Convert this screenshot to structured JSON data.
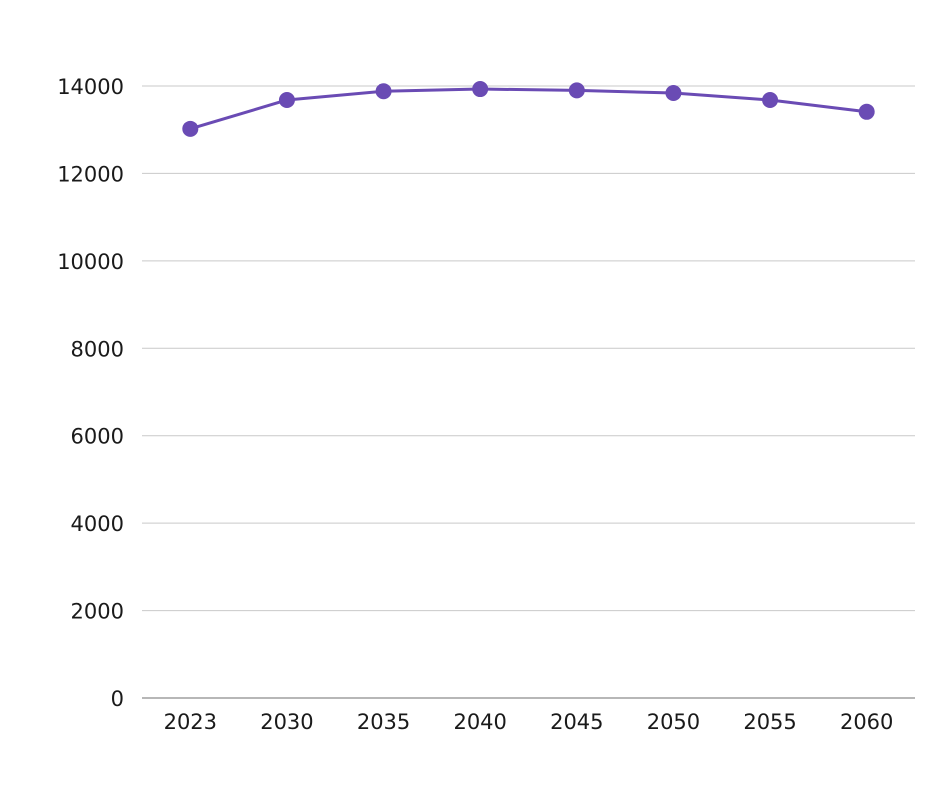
{
  "chart_data": {
    "type": "line",
    "title": "",
    "xlabel": "",
    "ylabel": "",
    "categories": [
      "2023",
      "2030",
      "2035",
      "2040",
      "2045",
      "2050",
      "2055",
      "2060"
    ],
    "series": [
      {
        "values": [
          13020,
          13680,
          13880,
          13930,
          13900,
          13840,
          13680,
          13410
        ],
        "color": "#6a4bb4"
      }
    ],
    "ylim": [
      0,
      14000
    ],
    "yticks": [
      0,
      2000,
      4000,
      6000,
      8000,
      10000,
      12000,
      14000
    ],
    "ytick_labels": [
      "0",
      "2000",
      "4000",
      "6000",
      "8000",
      "10000",
      "12000",
      "14000"
    ],
    "grid": true,
    "legend": "none"
  }
}
